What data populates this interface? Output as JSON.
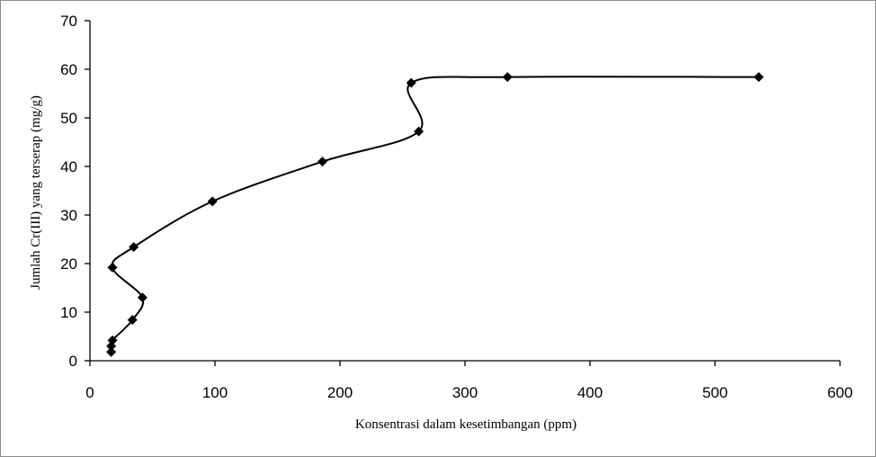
{
  "chart_data": {
    "type": "scatter",
    "title": "",
    "xlabel": "Konsentrasi dalam kesetimbangan (ppm)",
    "ylabel": "Jumlah Cr(III) yang terserap (mg/g)",
    "xlim": [
      0,
      600
    ],
    "ylim": [
      0,
      70
    ],
    "x_ticks": [
      0,
      100,
      200,
      300,
      400,
      500,
      600
    ],
    "y_ticks": [
      0,
      10,
      20,
      30,
      40,
      50,
      60,
      70
    ],
    "grid": false,
    "legend": "none",
    "line": "smoothed",
    "marker": "diamond",
    "series": [
      {
        "points": [
          {
            "x": 17,
            "y": 1.8
          },
          {
            "x": 17,
            "y": 3.0
          },
          {
            "x": 18,
            "y": 4.2
          },
          {
            "x": 34,
            "y": 8.4
          },
          {
            "x": 42,
            "y": 13.0
          },
          {
            "x": 18,
            "y": 19.2
          },
          {
            "x": 35,
            "y": 23.4
          },
          {
            "x": 98,
            "y": 32.8
          },
          {
            "x": 186,
            "y": 41.0
          },
          {
            "x": 263,
            "y": 47.2
          },
          {
            "x": 257,
            "y": 57.2
          },
          {
            "x": 334,
            "y": 58.4
          },
          {
            "x": 535,
            "y": 58.4
          }
        ]
      }
    ],
    "colors": {
      "line": "#000000",
      "marker": "#000000",
      "axis": "#000000"
    }
  }
}
